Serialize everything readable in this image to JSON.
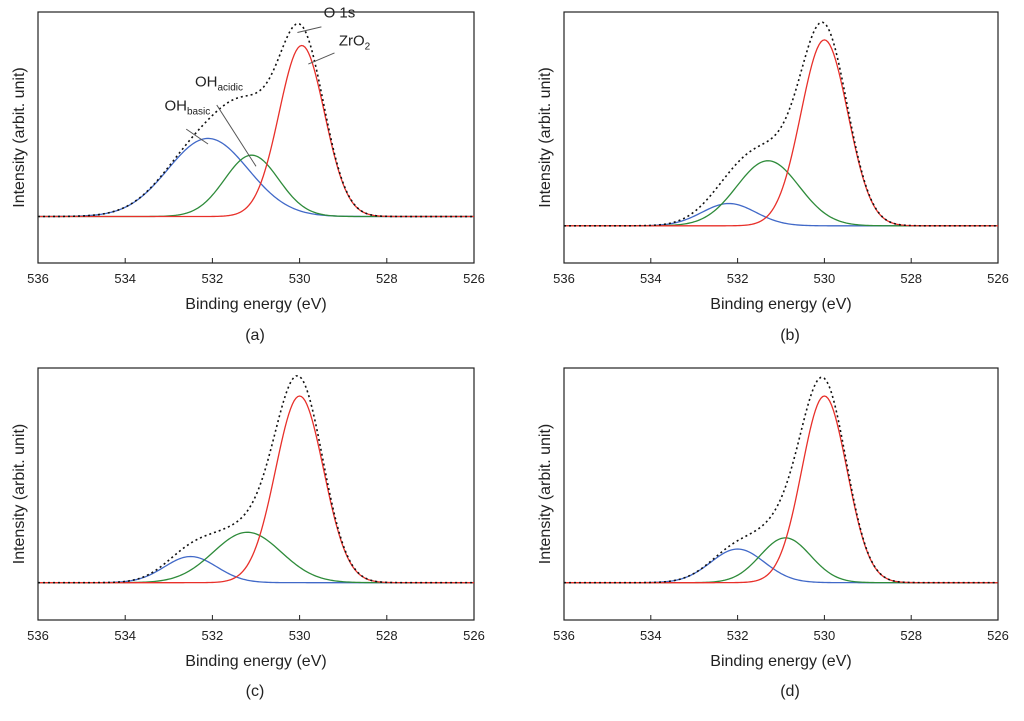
{
  "figure": {
    "panel_labels": [
      "(a)",
      "(b)",
      "(c)",
      "(d)"
    ]
  },
  "chart_data": [
    {
      "type": "line",
      "panel_label": "(a)",
      "xlabel": "Binding energy (eV)",
      "ylabel": "Intensity (arbit. unit)",
      "xlim": [
        536,
        526
      ],
      "ylim": [
        -0.25,
        1.1
      ],
      "x_reversed": true,
      "xticks": [
        536,
        534,
        532,
        530,
        528,
        526
      ],
      "grid": false,
      "components": [
        {
          "key": "oh_basic",
          "center": 532.1,
          "height": 0.42,
          "sigma": 0.92,
          "color": "#4169c8"
        },
        {
          "key": "oh_acidic",
          "center": 531.1,
          "height": 0.33,
          "sigma": 0.62,
          "color": "#2e8b3a"
        },
        {
          "key": "zro2",
          "center": 529.95,
          "height": 0.92,
          "sigma": 0.52,
          "color": "#e8302a"
        }
      ],
      "envelope": {
        "key": "o1s",
        "style": "dotted",
        "color": "#111111"
      },
      "annotations": [
        {
          "key": "o1s",
          "text": "O 1s",
          "text_x": 529.45,
          "text_y": 1.07,
          "line_from": [
            529.5,
            1.02
          ],
          "line_to": [
            530.05,
            0.99
          ]
        },
        {
          "key": "zro2",
          "text": "ZrO",
          "sub": "2",
          "text_x": 529.1,
          "text_y": 0.92,
          "line_from": [
            529.2,
            0.88
          ],
          "line_to": [
            529.8,
            0.82
          ]
        },
        {
          "key": "oh_acidic",
          "text": "OH",
          "sub": "acidic",
          "text_x": 532.4,
          "text_y": 0.7,
          "line_from": [
            531.9,
            0.6
          ],
          "line_to": [
            531.0,
            0.27
          ]
        },
        {
          "key": "oh_basic",
          "text": "OH",
          "sub": "basic",
          "text_x": 533.1,
          "text_y": 0.57,
          "line_from": [
            532.6,
            0.47
          ],
          "line_to": [
            532.1,
            0.39
          ]
        }
      ]
    },
    {
      "type": "line",
      "panel_label": "(b)",
      "xlabel": "Binding energy (eV)",
      "ylabel": "Intensity (arbit. unit)",
      "xlim": [
        536,
        526
      ],
      "ylim": [
        -0.2,
        1.15
      ],
      "x_reversed": true,
      "xticks": [
        536,
        534,
        532,
        530,
        528,
        526
      ],
      "grid": false,
      "components": [
        {
          "key": "oh_basic",
          "center": 532.2,
          "height": 0.12,
          "sigma": 0.62,
          "color": "#4169c8"
        },
        {
          "key": "oh_acidic",
          "center": 531.3,
          "height": 0.35,
          "sigma": 0.72,
          "color": "#2e8b3a"
        },
        {
          "key": "zro2",
          "center": 530.0,
          "height": 1.0,
          "sigma": 0.54,
          "color": "#e8302a"
        }
      ],
      "envelope": {
        "key": "o1s",
        "style": "dotted",
        "color": "#111111"
      },
      "annotations": []
    },
    {
      "type": "line",
      "panel_label": "(c)",
      "xlabel": "Binding energy (eV)",
      "ylabel": "Intensity (arbit. unit)",
      "xlim": [
        536,
        526
      ],
      "ylim": [
        -0.2,
        1.15
      ],
      "x_reversed": true,
      "xticks": [
        536,
        534,
        532,
        530,
        528,
        526
      ],
      "grid": false,
      "components": [
        {
          "key": "oh_basic",
          "center": 532.5,
          "height": 0.14,
          "sigma": 0.6,
          "color": "#4169c8"
        },
        {
          "key": "oh_acidic",
          "center": 531.2,
          "height": 0.27,
          "sigma": 0.78,
          "color": "#2e8b3a"
        },
        {
          "key": "zro2",
          "center": 530.0,
          "height": 1.0,
          "sigma": 0.55,
          "color": "#e8302a"
        }
      ],
      "envelope": {
        "key": "o1s",
        "style": "dotted",
        "color": "#111111"
      },
      "annotations": []
    },
    {
      "type": "line",
      "panel_label": "(d)",
      "xlabel": "Binding energy (eV)",
      "ylabel": "Intensity (arbit. unit)",
      "xlim": [
        536,
        526
      ],
      "ylim": [
        -0.2,
        1.15
      ],
      "x_reversed": true,
      "xticks": [
        536,
        534,
        532,
        530,
        528,
        526
      ],
      "grid": false,
      "components": [
        {
          "key": "oh_basic",
          "center": 532.0,
          "height": 0.18,
          "sigma": 0.62,
          "color": "#4169c8"
        },
        {
          "key": "oh_acidic",
          "center": 530.9,
          "height": 0.24,
          "sigma": 0.58,
          "color": "#2e8b3a"
        },
        {
          "key": "zro2",
          "center": 530.0,
          "height": 1.0,
          "sigma": 0.52,
          "color": "#e8302a"
        }
      ],
      "envelope": {
        "key": "o1s",
        "style": "dotted",
        "color": "#111111"
      },
      "annotations": []
    }
  ]
}
